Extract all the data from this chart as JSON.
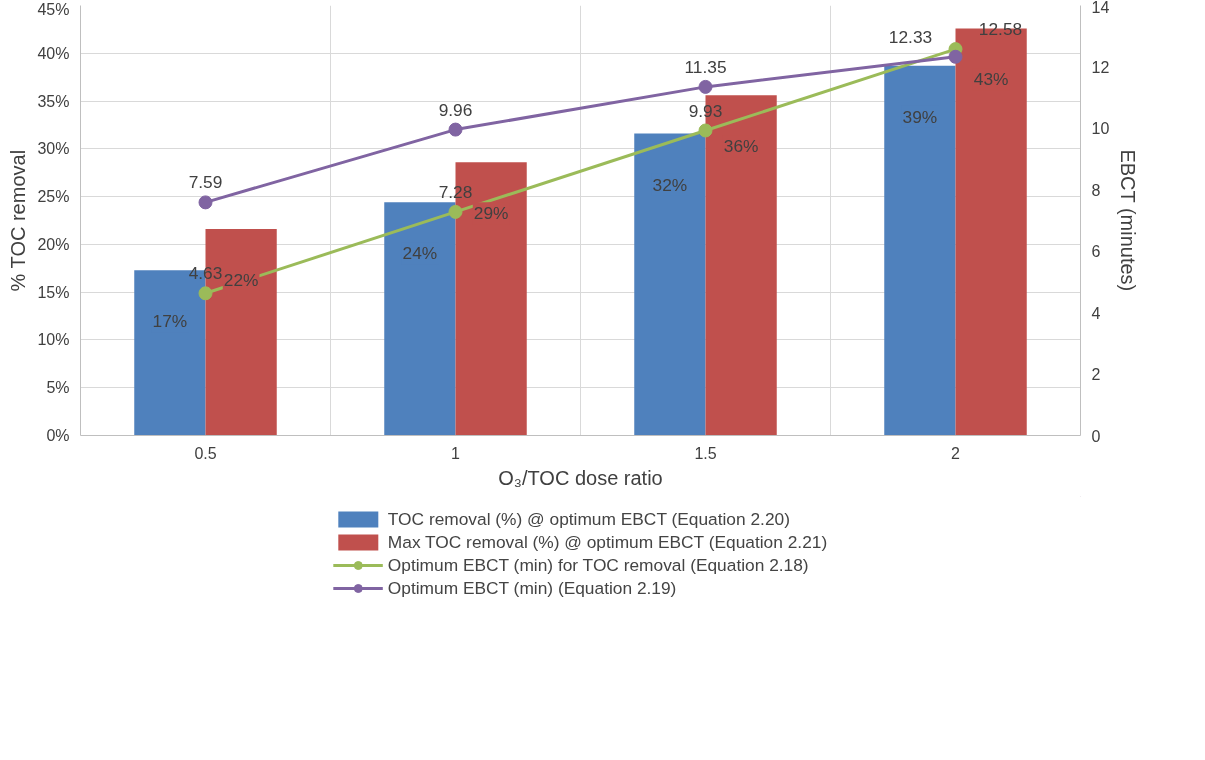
{
  "chart_data": {
    "type": "bar",
    "xlabel": "O₃/TOC dose ratio",
    "ylabel": "% TOC removal",
    "y2label": "EBCT (minutes)",
    "categories": [
      "0.5",
      "1",
      "1.5",
      "2"
    ],
    "series": [
      {
        "name": "TOC removal (%) @ optimum EBCT (Equation 2.20)",
        "color": "#4f81bd",
        "values": [
          17.3,
          24.4,
          31.6,
          38.7
        ],
        "value_labels": [
          "17%",
          "24%",
          "32%",
          "39%"
        ]
      },
      {
        "name": "Max TOC removal (%) @ optimum EBCT (Equation 2.21)",
        "color": "#c0504d",
        "values": [
          21.6,
          28.6,
          35.6,
          42.6
        ],
        "value_labels": [
          "22%",
          "29%",
          "36%",
          "43%"
        ]
      },
      {
        "name": "Optimum EBCT (min) for TOC removal (Equation 2.18)",
        "type": "line",
        "axis": "y2",
        "color": "#9bbb59",
        "values": [
          4.63,
          7.28,
          9.93,
          12.58
        ],
        "value_labels": [
          "4.63",
          "7.28",
          "9.93",
          "12.58"
        ]
      },
      {
        "name": "Optimum EBCT (min) (Equation 2.19)",
        "type": "line",
        "axis": "y2",
        "color": "#8064a2",
        "values": [
          7.59,
          9.96,
          11.35,
          12.33
        ],
        "value_labels": [
          "7.59",
          "9.96",
          "11.35",
          "12.33"
        ]
      }
    ],
    "ylim": [
      0,
      45
    ],
    "yticks": [
      {
        "value": 0,
        "label": "0%"
      },
      {
        "value": 5,
        "label": "5%"
      },
      {
        "value": 10,
        "label": "10%"
      },
      {
        "value": 15,
        "label": "15%"
      },
      {
        "value": 20,
        "label": "20%"
      },
      {
        "value": 25,
        "label": "25%"
      },
      {
        "value": 30,
        "label": "30%"
      },
      {
        "value": 35,
        "label": "35%"
      },
      {
        "value": 40,
        "label": "40%"
      },
      {
        "value": 45,
        "label": "45%"
      }
    ],
    "y2lim": [
      0,
      14
    ],
    "y2ticks": [
      0,
      2,
      4,
      6,
      8,
      10,
      12,
      14
    ],
    "marker": "circle",
    "line_style": "solid",
    "grid": true,
    "legend": "bottom"
  }
}
